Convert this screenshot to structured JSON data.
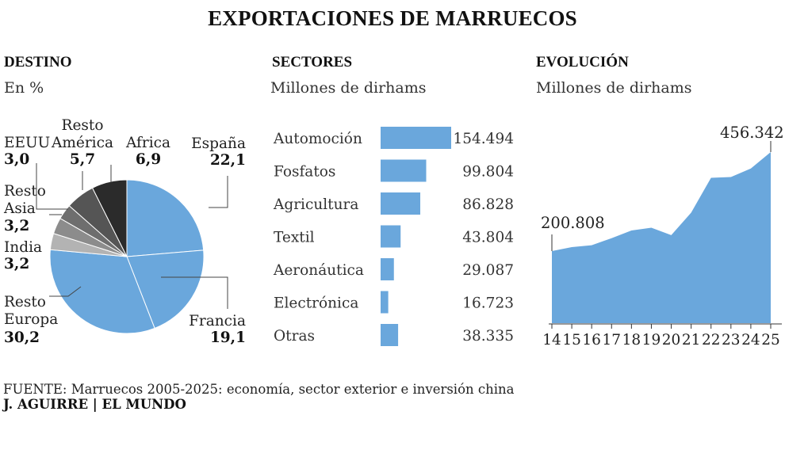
{
  "title": "EXPORTACIONES DE MARRUECOS",
  "destino": {
    "header": "DESTINO",
    "subtitle": "En %"
  },
  "sectores": {
    "header": "SECTORES",
    "subtitle": "Millones de dirhams"
  },
  "evolucion": {
    "header": "EVOLUCIÓN",
    "subtitle": "Millones de dirhams"
  },
  "footer": {
    "source": "FUENTE: Marruecos 2005-2025: economía, sector exterior e inversión china",
    "credit": "J. AGUIRRE | EL MUNDO"
  },
  "colors": {
    "blue": "#6aa7dc",
    "gray_light": "#b3b3b3",
    "gray_mid": "#8c8c8c",
    "gray_dark": "#6e6e6e",
    "gray_darker": "#555555",
    "black": "#2b2b2b"
  },
  "chart_data": [
    {
      "type": "pie",
      "title": "DESTINO",
      "subtitle": "En %",
      "slices": [
        {
          "label": "España",
          "value": 22.1,
          "value_label": "22,1",
          "color": "#6aa7dc"
        },
        {
          "label": "Francia",
          "value": 19.1,
          "value_label": "19,1",
          "color": "#6aa7dc"
        },
        {
          "label": "Resto Europa",
          "value": 30.2,
          "value_label": "30,2",
          "color": "#6aa7dc"
        },
        {
          "label": "India",
          "value": 3.2,
          "value_label": "3,2",
          "color": "#b3b3b3"
        },
        {
          "label": "Resto Asia",
          "value": 3.2,
          "value_label": "3,2",
          "color": "#8c8c8c"
        },
        {
          "label": "EEUU",
          "value": 3.0,
          "value_label": "3,0",
          "color": "#6e6e6e"
        },
        {
          "label": "Resto América",
          "value": 5.7,
          "value_label": "5,7",
          "color": "#555555"
        },
        {
          "label": "Africa",
          "value": 6.9,
          "value_label": "6,9",
          "color": "#2b2b2b"
        }
      ]
    },
    {
      "type": "bar",
      "orientation": "horizontal",
      "title": "SECTORES",
      "subtitle": "Millones de dirhams",
      "categories": [
        "Automoción",
        "Fosfatos",
        "Agricultura",
        "Textil",
        "Aeronáutica",
        "Electrónica",
        "Otras"
      ],
      "values": [
        154494,
        99804,
        86828,
        43804,
        29087,
        16723,
        38335
      ],
      "value_labels": [
        "154.494",
        "99.804",
        "86.828",
        "43.804",
        "29.087",
        "16.723",
        "38.335"
      ],
      "color": "#6aa7dc"
    },
    {
      "type": "area",
      "title": "EVOLUCIÓN",
      "subtitle": "Millones de dirhams",
      "x": [
        "14",
        "15",
        "16",
        "17",
        "18",
        "19",
        "20",
        "21",
        "22",
        "23",
        "24",
        "25"
      ],
      "values": [
        200808,
        211000,
        216000,
        234000,
        254000,
        261000,
        242000,
        300000,
        390000,
        392000,
        414000,
        456342
      ],
      "annotations": [
        {
          "x": "14",
          "label": "200.808"
        },
        {
          "x": "25",
          "label": "456.342"
        }
      ],
      "color": "#6aa7dc"
    }
  ]
}
